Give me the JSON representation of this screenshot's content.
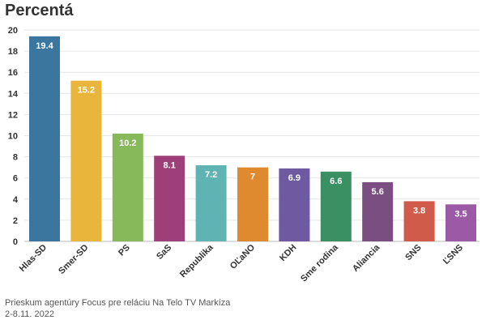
{
  "chart_data": {
    "type": "bar",
    "title": "Percentá",
    "categories": [
      "Hlas-SD",
      "Smer-SD",
      "PS",
      "SaS",
      "Republika",
      "OĽaNO",
      "KDH",
      "Sme rodina",
      "Aliancia",
      "SNS",
      "ĽSNS"
    ],
    "values": [
      19.4,
      15.2,
      10.2,
      8.1,
      7.2,
      7,
      6.9,
      6.6,
      5.6,
      3.8,
      3.5
    ],
    "colors": [
      "#3a769e",
      "#eab53b",
      "#87b85a",
      "#9e3f79",
      "#5fb3b3",
      "#e08a30",
      "#6d5aa0",
      "#3a8f63",
      "#7a4e80",
      "#d05b4b",
      "#9b59a6"
    ],
    "yticks": [
      0,
      2,
      4,
      6,
      8,
      10,
      12,
      14,
      16,
      18,
      20
    ],
    "ylim": [
      0,
      20
    ],
    "xlabel": "",
    "ylabel": "",
    "grid": true,
    "legend": "none"
  },
  "footnote": {
    "line1": "Prieskum agentúry Focus pre reláciu Na Telo TV Markíza",
    "line2": "2-8.11. 2022"
  }
}
